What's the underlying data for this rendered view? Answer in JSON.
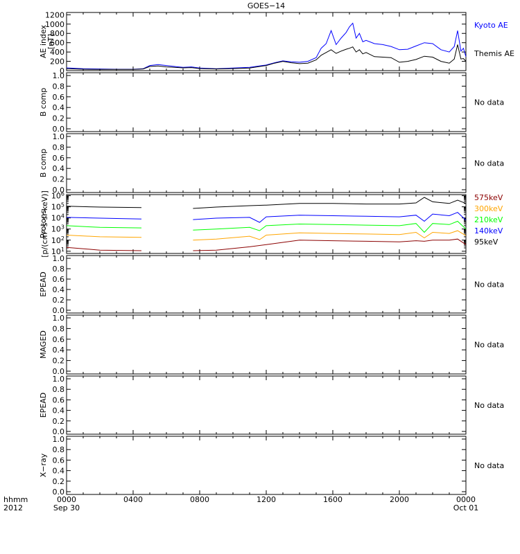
{
  "chart_data": {
    "type": "line",
    "title": "GOES−14",
    "x_axis": {
      "ticks": [
        "0000",
        "0400",
        "0800",
        "1200",
        "1600",
        "2000",
        "0000"
      ],
      "tick_sublabels": [
        "Sep 30",
        "",
        "",
        "",
        "",
        "",
        "Oct 01"
      ],
      "range_hours": [
        0,
        24
      ],
      "corner_label_top": "hhmm",
      "corner_label_bottom": "2012"
    },
    "panels": [
      {
        "id": "ae",
        "ylabel": "AE index",
        "ylabel_units": "[nT]",
        "yticks": [
          "0",
          "200",
          "400",
          "600",
          "800",
          "1000",
          "1200"
        ],
        "ylim": [
          0,
          1250
        ],
        "series": [
          {
            "name": "Kyoto AE",
            "color": "#0000ff",
            "x": [
              0,
              1,
              2,
              3,
              4,
              4.6,
              5,
              5.5,
              6,
              6.5,
              7,
              7.5,
              8,
              9,
              10,
              11,
              12,
              12.5,
              13,
              13.5,
              14,
              14.5,
              15,
              15.3,
              15.6,
              15.9,
              16.2,
              16.5,
              16.8,
              17,
              17.2,
              17.4,
              17.6,
              17.8,
              18,
              18.5,
              19,
              19.5,
              20,
              20.5,
              21,
              21.5,
              22,
              22.5,
              23,
              23.3,
              23.5,
              23.7,
              23.85,
              24
            ],
            "y": [
              60,
              40,
              35,
              30,
              30,
              40,
              110,
              130,
              110,
              90,
              70,
              80,
              55,
              40,
              55,
              70,
              120,
              170,
              210,
              190,
              180,
              200,
              280,
              480,
              580,
              860,
              560,
              700,
              820,
              940,
              1020,
              700,
              800,
              620,
              650,
              580,
              560,
              520,
              450,
              460,
              530,
              600,
              580,
              450,
              400,
              520,
              860,
              420,
              480,
              300
            ]
          },
          {
            "name": "Themis AE",
            "color": "#000000",
            "x": [
              0,
              1,
              2,
              3,
              4,
              4.6,
              5,
              5.5,
              6,
              6.5,
              7,
              7.5,
              8,
              9,
              10,
              11,
              12,
              12.5,
              13,
              13.5,
              14,
              14.5,
              15,
              15.3,
              15.6,
              15.9,
              16.2,
              16.5,
              16.8,
              17,
              17.2,
              17.4,
              17.6,
              17.8,
              18,
              18.5,
              19,
              19.5,
              20,
              20.5,
              21,
              21.5,
              22,
              22.5,
              23,
              23.3,
              23.5,
              23.7,
              23.85,
              24
            ],
            "y": [
              40,
              30,
              25,
              25,
              25,
              35,
              90,
              100,
              80,
              70,
              60,
              65,
              45,
              35,
              45,
              55,
              110,
              160,
              200,
              170,
              150,
              160,
              230,
              330,
              390,
              450,
              370,
              420,
              460,
              480,
              510,
              400,
              450,
              360,
              390,
              300,
              290,
              280,
              180,
              200,
              240,
              310,
              290,
              200,
              160,
              250,
              560,
              250,
              260,
              200
            ]
          }
        ],
        "legend": "right"
      },
      {
        "id": "b1",
        "ylabel": "B comp",
        "yticks": [
          "0.0",
          "0.2",
          "0.4",
          "0.6",
          "0.8",
          "1.0"
        ],
        "ylim": [
          0,
          1
        ],
        "status": "No data"
      },
      {
        "id": "b2",
        "ylabel": "B comp",
        "yticks": [
          "0.0",
          "0.2",
          "0.4",
          "0.6",
          "0.8",
          "1.0"
        ],
        "ylim": [
          0,
          1
        ],
        "status": "No data"
      },
      {
        "id": "protons",
        "ylabel": "Protons",
        "ylabel_units": "[p/(cm²-s-sr-keV)]",
        "yscale": "log",
        "ytick_exponents": [
          1,
          2,
          3,
          4,
          5,
          6
        ],
        "ylim_log10": [
          0.8,
          6.1
        ],
        "x_gap_hours": [
          4.55,
          7.6
        ],
        "series": [
          {
            "name": "95keV",
            "color": "#000000",
            "x": [
              0,
              2,
              4.5,
              7.6,
              9,
              11,
              12,
              14,
              16,
              18,
              20,
              21,
              21.5,
              22,
              23,
              23.5,
              24
            ],
            "y_log10": [
              5.05,
              4.98,
              4.93,
              4.85,
              4.98,
              5.1,
              5.15,
              5.3,
              5.3,
              5.25,
              5.25,
              5.35,
              5.85,
              5.45,
              5.3,
              5.6,
              5.3
            ]
          },
          {
            "name": "140keV",
            "color": "#0000ff",
            "x": [
              0,
              2,
              4.5,
              7.6,
              9,
              11,
              11.6,
              12,
              14,
              16,
              18,
              20,
              21,
              21.5,
              22,
              23,
              23.5,
              24
            ],
            "y_log10": [
              4.05,
              3.98,
              3.9,
              3.85,
              3.98,
              4.05,
              3.6,
              4.1,
              4.25,
              4.2,
              4.15,
              4.1,
              4.25,
              3.7,
              4.35,
              4.2,
              4.5,
              3.8
            ]
          },
          {
            "name": "210keV",
            "color": "#00ff00",
            "x": [
              0,
              2,
              4.5,
              7.6,
              9,
              11,
              11.6,
              12,
              14,
              16,
              18,
              20,
              21,
              21.5,
              22,
              23,
              23.5,
              24
            ],
            "y_log10": [
              3.3,
              3.15,
              3.1,
              2.9,
              3.0,
              3.15,
              2.85,
              3.3,
              3.45,
              3.4,
              3.35,
              3.3,
              3.5,
              2.7,
              3.5,
              3.4,
              3.7,
              3.0
            ]
          },
          {
            "name": "300keV",
            "color": "#ffa500",
            "x": [
              0,
              2,
              4.5,
              7.6,
              9,
              11,
              11.6,
              12,
              14,
              16,
              18,
              20,
              21,
              21.5,
              22,
              23,
              23.5,
              24
            ],
            "y_log10": [
              2.45,
              2.3,
              2.25,
              2.0,
              2.1,
              2.35,
              2.05,
              2.45,
              2.65,
              2.6,
              2.55,
              2.5,
              2.7,
              2.2,
              2.7,
              2.6,
              2.85,
              2.4
            ]
          },
          {
            "name": "575keV",
            "color": "#8b0000",
            "x": [
              0,
              2,
              4.5,
              7.6,
              9,
              11,
              12,
              13,
              14,
              16,
              18,
              20,
              21,
              21.5,
              22,
              23,
              23.5,
              24
            ],
            "y_log10": [
              1.35,
              1.1,
              1.05,
              1.05,
              1.1,
              1.4,
              1.6,
              1.8,
              2.0,
              1.95,
              1.9,
              1.85,
              1.95,
              1.9,
              2.0,
              2.0,
              2.1,
              1.6
            ]
          }
        ],
        "legend": "right"
      },
      {
        "id": "epead1",
        "ylabel": "EPEAD",
        "yticks": [
          "0.0",
          "0.2",
          "0.4",
          "0.6",
          "0.8",
          "1.0"
        ],
        "ylim": [
          0,
          1
        ],
        "status": "No data"
      },
      {
        "id": "maged",
        "ylabel": "MAGED",
        "yticks": [
          "0.0",
          "0.2",
          "0.4",
          "0.6",
          "0.8",
          "1.0"
        ],
        "ylim": [
          0,
          1
        ],
        "status": "No data"
      },
      {
        "id": "epead2",
        "ylabel": "EPEAD",
        "yticks": [
          "0.0",
          "0.2",
          "0.4",
          "0.6",
          "0.8",
          "1.0"
        ],
        "ylim": [
          0,
          1
        ],
        "status": "No data"
      },
      {
        "id": "xray",
        "ylabel": "X−ray",
        "yticks": [
          "0.0",
          "0.2",
          "0.4",
          "0.6",
          "0.8",
          "1.0"
        ],
        "ylim": [
          0,
          1
        ],
        "status": "No data"
      }
    ],
    "proton_legend_order": [
      "575keV",
      "300keV",
      "210keV",
      "140keV",
      "95keV"
    ]
  }
}
